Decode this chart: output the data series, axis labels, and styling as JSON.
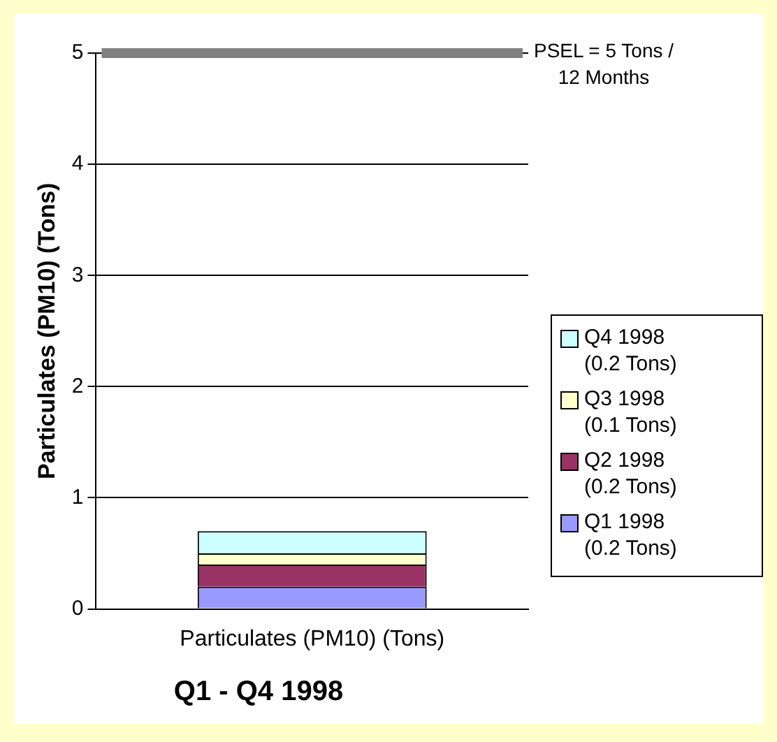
{
  "chart_data": {
    "type": "bar",
    "title": "Q1 - Q4 1998",
    "ylabel": "Particulates (PM10) (Tons)",
    "categories": [
      "Particulates (PM10) (Tons)"
    ],
    "stacked": true,
    "series": [
      {
        "name": "Q1 1998 (0.2 Tons)",
        "color": "#9999ff",
        "values": [
          0.2
        ]
      },
      {
        "name": "Q2 1998 (0.2 Tons)",
        "color": "#993366",
        "values": [
          0.2
        ]
      },
      {
        "name": "Q3 1998 (0.1 Tons)",
        "color": "#ffffcc",
        "values": [
          0.1
        ]
      },
      {
        "name": "Q4 1998 (0.2 Tons)",
        "color": "#ccffff",
        "values": [
          0.2
        ]
      }
    ],
    "ylim": [
      0,
      5
    ],
    "yticks": [
      0,
      1,
      2,
      3,
      4,
      5
    ],
    "grid": "y",
    "legend": "right",
    "ref_lines": [
      {
        "axis": "y",
        "value": 5,
        "label": "PSEL = 5 Tons / 12 Months",
        "color": "#808080"
      }
    ]
  }
}
